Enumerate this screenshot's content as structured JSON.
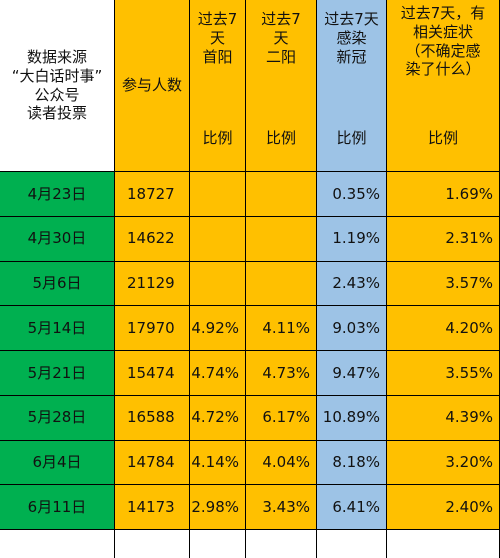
{
  "header": {
    "source": "数据来源\n“大白话时事”\n公众号\n读者投票",
    "participants": "参与人数",
    "first_positive": "过去7\n天\n首阳",
    "second_positive": "过去7\n天\n二阳",
    "infected_covid": "过去7天\n感染\n新冠",
    "related_symptoms": "过去7天，有\n相关症状\n（不确定感\n染了什么）",
    "ratio": "比例"
  },
  "rows": [
    {
      "date": "4月23日",
      "participants": "18727",
      "first": "",
      "second": "",
      "infected": "0.35%",
      "symptoms": "1.69%"
    },
    {
      "date": "4月30日",
      "participants": "14622",
      "first": "",
      "second": "",
      "infected": "1.19%",
      "symptoms": "2.31%"
    },
    {
      "date": "5月6日",
      "participants": "21129",
      "first": "",
      "second": "",
      "infected": "2.43%",
      "symptoms": "3.57%"
    },
    {
      "date": "5月14日",
      "participants": "17970",
      "first": "4.92%",
      "second": "4.11%",
      "infected": "9.03%",
      "symptoms": "4.20%"
    },
    {
      "date": "5月21日",
      "participants": "15474",
      "first": "4.74%",
      "second": "4.73%",
      "infected": "9.47%",
      "symptoms": "3.55%"
    },
    {
      "date": "5月28日",
      "participants": "16588",
      "first": "4.72%",
      "second": "6.17%",
      "infected": "10.89%",
      "symptoms": "4.39%"
    },
    {
      "date": "6月4日",
      "participants": "14784",
      "first": "4.14%",
      "second": "4.04%",
      "infected": "8.18%",
      "symptoms": "3.20%"
    },
    {
      "date": "6月11日",
      "participants": "14173",
      "first": "2.98%",
      "second": "3.43%",
      "infected": "6.41%",
      "symptoms": "2.40%"
    }
  ]
}
